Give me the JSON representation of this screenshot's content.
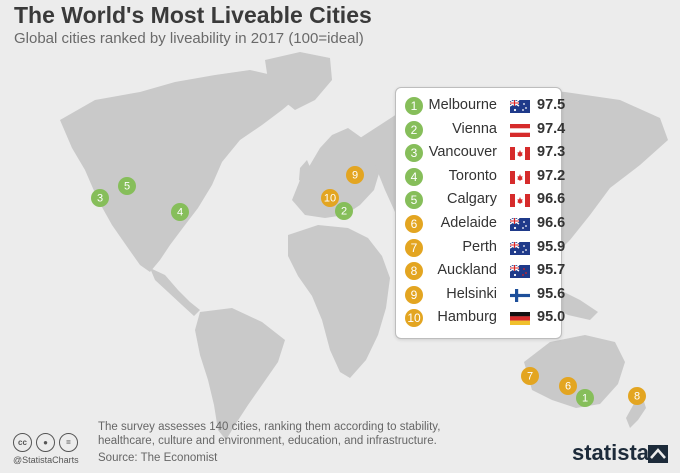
{
  "header": {
    "title": "The World's Most Liveable Cities",
    "subtitle": "Global cities ranked by liveability in 2017 (100=ideal)"
  },
  "colors": {
    "green": "#86be5a",
    "gold": "#e3a521",
    "land": "#c9c9c9",
    "background": "#ececec"
  },
  "ranking": [
    {
      "rank": "1",
      "city": "Melbourne",
      "country": "australia",
      "score": "97.5",
      "color": "#86be5a"
    },
    {
      "rank": "2",
      "city": "Vienna",
      "country": "austria",
      "score": "97.4",
      "color": "#86be5a"
    },
    {
      "rank": "3",
      "city": "Vancouver",
      "country": "canada",
      "score": "97.3",
      "color": "#86be5a"
    },
    {
      "rank": "4",
      "city": "Toronto",
      "country": "canada",
      "score": "97.2",
      "color": "#86be5a"
    },
    {
      "rank": "5",
      "city": "Calgary",
      "country": "canada",
      "score": "96.6",
      "color": "#86be5a"
    },
    {
      "rank": "6",
      "city": "Adelaide",
      "country": "australia",
      "score": "96.6",
      "color": "#e3a521"
    },
    {
      "rank": "7",
      "city": "Perth",
      "country": "australia",
      "score": "95.9",
      "color": "#e3a521"
    },
    {
      "rank": "8",
      "city": "Auckland",
      "country": "new-zealand",
      "score": "95.7",
      "color": "#e3a521"
    },
    {
      "rank": "9",
      "city": "Helsinki",
      "country": "finland",
      "score": "95.6",
      "color": "#e3a521"
    },
    {
      "rank": "10",
      "city": "Hamburg",
      "country": "germany",
      "score": "95.0",
      "color": "#e3a521"
    }
  ],
  "footer": {
    "note": "The survey assesses 140 cities, ranking them according to stability, healthcare, culture and environment, education, and infrastructure.",
    "source": "Source: The Economist",
    "handle": "@StatistaCharts",
    "brand": "statista"
  }
}
